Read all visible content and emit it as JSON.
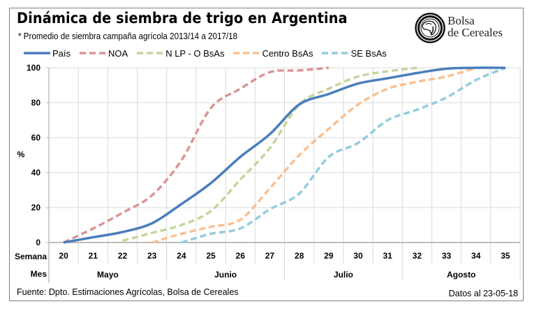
{
  "header": {
    "title": "Dinámica de siembra de trigo en Argentina",
    "subtitle": "* Promedio de siembra campaña agrícola 2013/14  a 2017/18"
  },
  "logo": {
    "icon": "bolsa-de-cereales-seal-icon",
    "line1": "Bolsa",
    "line2": "de Cereales"
  },
  "footer": {
    "source": "Fuente: Dpto. Estimaciones Agrícolas, Bolsa de Cereales",
    "date_note": "Datos al 23-05-18"
  },
  "chart_data": {
    "type": "line",
    "title": "Dinámica de siembra de trigo en Argentina",
    "subtitle": "* Promedio de siembra campaña agrícola 2013/14  a 2017/18",
    "xlabel": "Semana",
    "x2label": "Mes",
    "ylabel": "%",
    "ylim": [
      0,
      100
    ],
    "yticks": [
      0,
      20,
      40,
      60,
      80,
      100
    ],
    "grid": true,
    "legend_position": "top-left",
    "categories": [
      "20",
      "21",
      "22",
      "23",
      "24",
      "25",
      "26",
      "27",
      "28",
      "29",
      "30",
      "31",
      "32",
      "33",
      "34",
      "35"
    ],
    "months": [
      {
        "label": "Mayo",
        "weeks": [
          "20",
          "21",
          "22",
          "23"
        ]
      },
      {
        "label": "Junio",
        "weeks": [
          "24",
          "25",
          "26",
          "27"
        ]
      },
      {
        "label": "Julio",
        "weeks": [
          "28",
          "29",
          "30",
          "31"
        ]
      },
      {
        "label": "Agosto",
        "weeks": [
          "32",
          "33",
          "34",
          "35"
        ]
      }
    ],
    "series": [
      {
        "name": "País",
        "color": "#4a7ebb",
        "style": "solid",
        "values": [
          0,
          3,
          6,
          11,
          22,
          34,
          49,
          62,
          79,
          85,
          91,
          94,
          97,
          99.5,
          100,
          100
        ]
      },
      {
        "name": "NOA",
        "color": "#d99694",
        "style": "dashed",
        "values": [
          0,
          8,
          17,
          27,
          47,
          77,
          88,
          97.5,
          98.5,
          100,
          null,
          null,
          null,
          null,
          null,
          null
        ]
      },
      {
        "name": "N LP - O BsAs",
        "color": "#c3d69b",
        "style": "dashed",
        "values": [
          null,
          null,
          1,
          5.5,
          10,
          18,
          36,
          54,
          79,
          88,
          95,
          98,
          100,
          null,
          null,
          null
        ]
      },
      {
        "name": "Centro BsAs",
        "color": "#fac090",
        "style": "dashed",
        "values": [
          null,
          null,
          null,
          0,
          5,
          9,
          13,
          31,
          50,
          65,
          79,
          88,
          92,
          95,
          100,
          null
        ]
      },
      {
        "name": "SE BsAs",
        "color": "#93cddd",
        "style": "dashed",
        "values": [
          null,
          null,
          null,
          null,
          0,
          5,
          8,
          19,
          28,
          49,
          57,
          70,
          76,
          83,
          93,
          100
        ]
      }
    ]
  }
}
